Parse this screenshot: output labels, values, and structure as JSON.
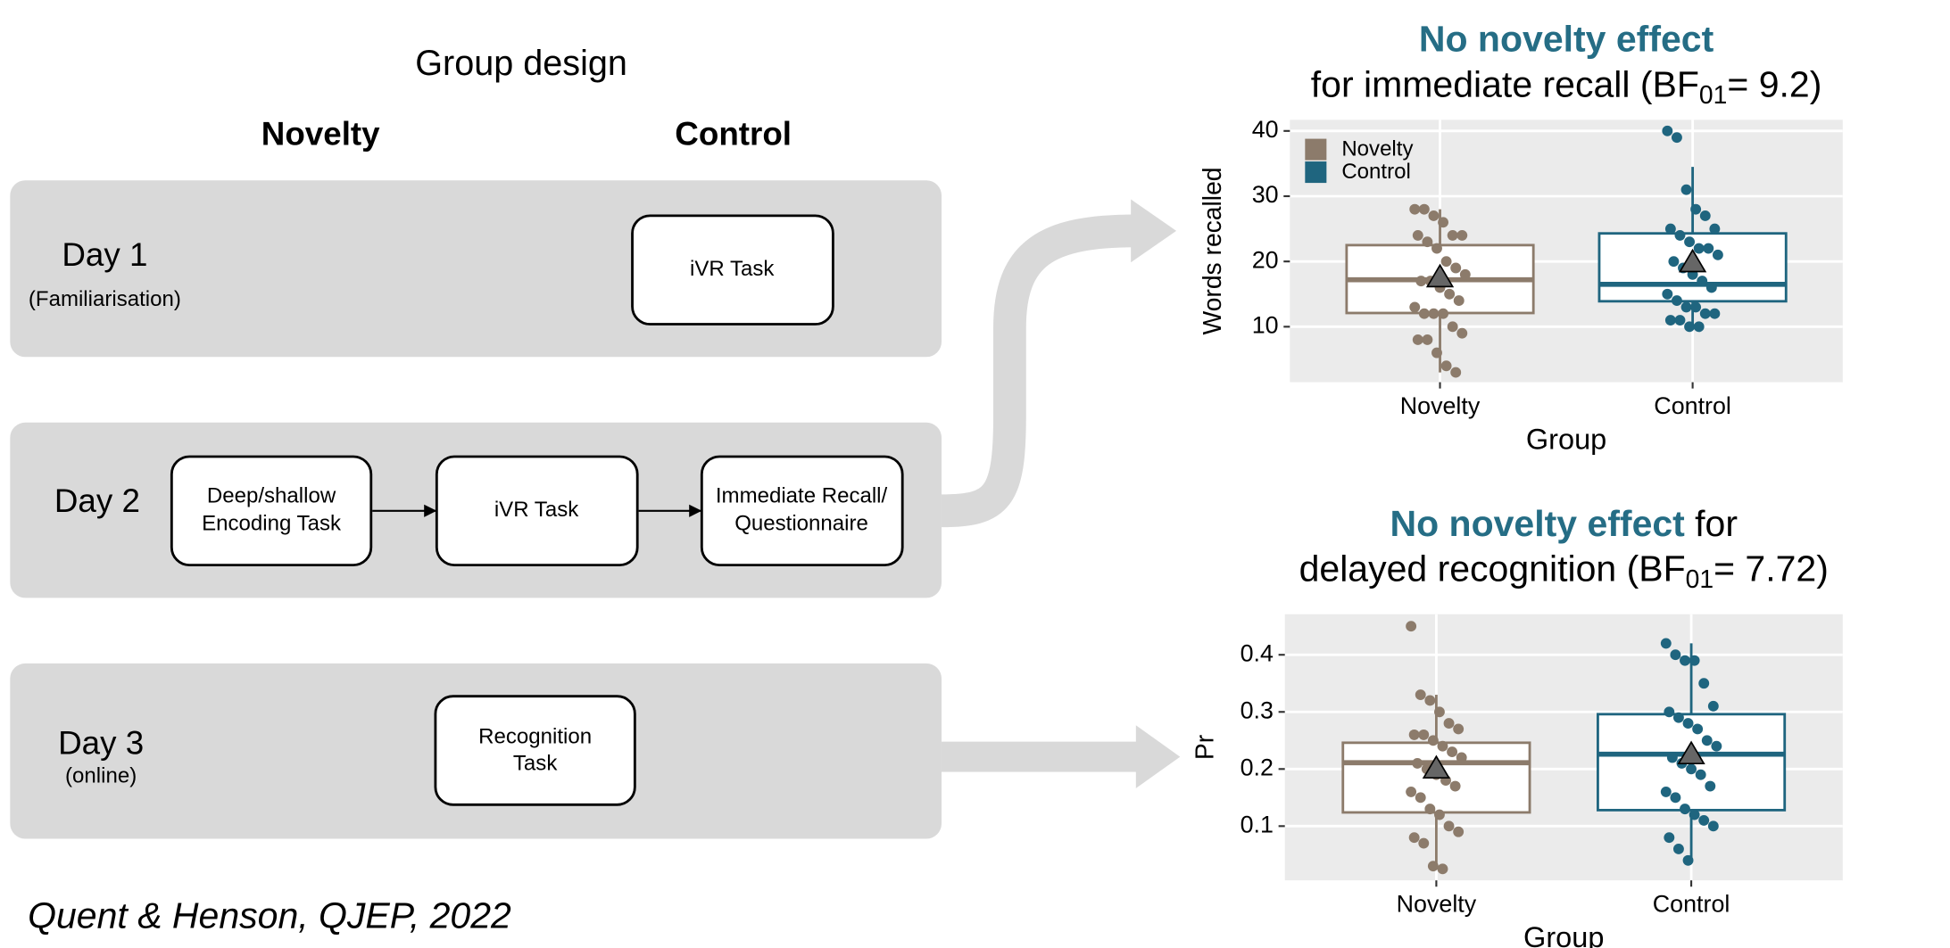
{
  "diagram": {
    "title": "Group design",
    "columns": [
      "Novelty",
      "Control"
    ],
    "column_colors": [
      "#8c7b6b",
      "#1f657f"
    ],
    "rows": [
      {
        "label": "Day 1",
        "sublabel": "(Familiarisation)",
        "tasks": [
          [
            "iVR Task"
          ]
        ]
      },
      {
        "label": "Day 2",
        "tasks": [
          [
            "Deep/shallow",
            "Encoding Task"
          ],
          [
            "iVR Task"
          ],
          [
            "Immediate Recall/",
            "Questionnaire"
          ]
        ]
      },
      {
        "label": "Day 3",
        "sublabel": "(online)",
        "tasks": [
          [
            "Recognition",
            "Task"
          ]
        ]
      }
    ],
    "citation": "Quent & Henson, QJEP, 2022"
  },
  "chart_data": [
    {
      "type": "box",
      "title_lines": [
        [
          {
            "text": "No novelty effect",
            "style": "highlight"
          }
        ],
        [
          {
            "text": "for immediate recall (BF"
          },
          {
            "text": "01",
            "style": "subscript"
          },
          {
            "text": "= 9.2)"
          }
        ]
      ],
      "title_highlight_color": "#256d85",
      "x_label": "Group",
      "y_label": "Words recalled",
      "categories": [
        "Novelty",
        "Control"
      ],
      "colors": [
        "#8c7b6b",
        "#1f657f"
      ],
      "legend": "top-left",
      "ylim": [
        1.5,
        41.7
      ],
      "yticks": [
        10,
        20,
        30,
        40
      ],
      "grid": true,
      "boxes": [
        {
          "whisker_low": 3,
          "q1": 12.1,
          "median": 17.2,
          "q3": 22.5,
          "whisker_high": 28
        },
        {
          "whisker_low": 10,
          "q1": 13.9,
          "median": 16.5,
          "q3": 24.3,
          "whisker_high": 34.5
        }
      ],
      "means": [
        17.5,
        19.8
      ],
      "points": [
        [
          28,
          28,
          27,
          26,
          24,
          24,
          24,
          23,
          22,
          20,
          19,
          18,
          17,
          17,
          16,
          15,
          14,
          13,
          12,
          12,
          12,
          10,
          9,
          8,
          8,
          6,
          4,
          3
        ],
        [
          40,
          39,
          31,
          28,
          27,
          25,
          25,
          24,
          23,
          22,
          22,
          21,
          20,
          19,
          18,
          17,
          16,
          15,
          14,
          13,
          13,
          12,
          12,
          11,
          11,
          10,
          10
        ]
      ]
    },
    {
      "type": "box",
      "title_lines": [
        [
          {
            "text": "No novelty effect",
            "style": "highlight"
          },
          {
            "text": "for"
          }
        ],
        [
          {
            "text": "delayed recognition (BF"
          },
          {
            "text": "01",
            "style": "subscript"
          },
          {
            "text": "= 7.72)"
          }
        ]
      ],
      "title_highlight_color": "#256d85",
      "x_label": "Group",
      "y_label": "Pr",
      "categories": [
        "Novelty",
        "Control"
      ],
      "colors": [
        "#8c7b6b",
        "#1f657f"
      ],
      "ylim": [
        0.005,
        0.471
      ],
      "yticks": [
        0.1,
        0.2,
        0.3,
        0.4
      ],
      "grid": true,
      "boxes": [
        {
          "whisker_low": 0.03,
          "q1": 0.124,
          "median": 0.211,
          "q3": 0.246,
          "whisker_high": 0.33
        },
        {
          "whisker_low": 0.04,
          "q1": 0.128,
          "median": 0.226,
          "q3": 0.296,
          "whisker_high": 0.42
        }
      ],
      "means": [
        0.2,
        0.225
      ],
      "points": [
        [
          0.45,
          0.33,
          0.32,
          0.3,
          0.28,
          0.27,
          0.26,
          0.26,
          0.25,
          0.24,
          0.23,
          0.22,
          0.21,
          0.2,
          0.19,
          0.18,
          0.17,
          0.16,
          0.15,
          0.13,
          0.12,
          0.1,
          0.09,
          0.08,
          0.07,
          0.03,
          0.025
        ],
        [
          0.42,
          0.4,
          0.39,
          0.39,
          0.35,
          0.31,
          0.3,
          0.29,
          0.28,
          0.27,
          0.25,
          0.24,
          0.22,
          0.21,
          0.2,
          0.19,
          0.17,
          0.16,
          0.15,
          0.13,
          0.12,
          0.11,
          0.1,
          0.08,
          0.06,
          0.04
        ]
      ]
    }
  ]
}
